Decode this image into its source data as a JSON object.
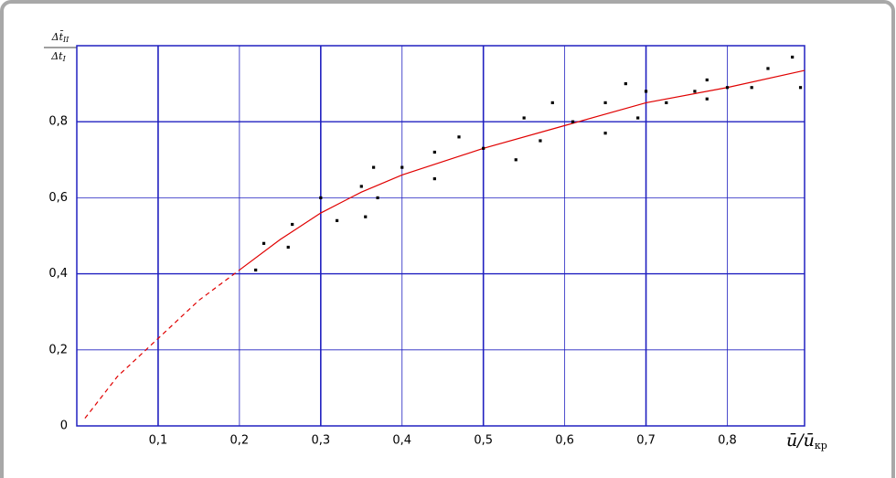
{
  "chart_data": {
    "type": "scatter",
    "ylabel": {
      "numerator": [
        "Δt̄",
        "II"
      ],
      "denominator": [
        "Δt",
        "I"
      ]
    },
    "xlabel": [
      "ū/ū",
      "кр"
    ],
    "xlim": [
      0,
      0.895
    ],
    "ylim": [
      0,
      1
    ],
    "xticks": [
      {
        "value": 0.1,
        "label": "0,1"
      },
      {
        "value": 0.2,
        "label": "0,2"
      },
      {
        "value": 0.3,
        "label": "0,3"
      },
      {
        "value": 0.4,
        "label": "0,4"
      },
      {
        "value": 0.5,
        "label": "0,5"
      },
      {
        "value": 0.6,
        "label": "0,6"
      },
      {
        "value": 0.7,
        "label": "0,7"
      },
      {
        "value": 0.8,
        "label": "0,8"
      }
    ],
    "yticks": [
      0,
      {
        "value": 0.2,
        "label": "0,2"
      },
      {
        "value": 0.4,
        "label": "0,4"
      },
      {
        "value": 0.6,
        "label": "0,6"
      },
      {
        "value": 0.8,
        "label": "0,8"
      }
    ],
    "grid": true,
    "grid_color": "#2020c0",
    "points": {
      "color": "#000000",
      "x": [
        0.22,
        0.23,
        0.26,
        0.265,
        0.3,
        0.32,
        0.35,
        0.355,
        0.365,
        0.37,
        0.4,
        0.44,
        0.44,
        0.47,
        0.5,
        0.54,
        0.55,
        0.57,
        0.585,
        0.61,
        0.65,
        0.65,
        0.675,
        0.69,
        0.7,
        0.725,
        0.76,
        0.775,
        0.775,
        0.8,
        0.83,
        0.85,
        0.88,
        0.89
      ],
      "y": [
        0.41,
        0.48,
        0.47,
        0.53,
        0.6,
        0.54,
        0.63,
        0.55,
        0.68,
        0.6,
        0.68,
        0.72,
        0.65,
        0.76,
        0.73,
        0.7,
        0.81,
        0.75,
        0.85,
        0.8,
        0.85,
        0.77,
        0.9,
        0.81,
        0.88,
        0.85,
        0.88,
        0.86,
        0.91,
        0.89,
        0.89,
        0.94,
        0.97,
        0.89
      ]
    },
    "curve_extrapolated": {
      "color": "#e00000",
      "x": [
        0.01,
        0.05,
        0.1,
        0.15,
        0.2
      ],
      "y": [
        0.02,
        0.13,
        0.23,
        0.33,
        0.41
      ]
    },
    "curve_fitted": {
      "color": "#e00000",
      "x": [
        0.2,
        0.25,
        0.3,
        0.35,
        0.4,
        0.5,
        0.6,
        0.7,
        0.8,
        0.895
      ],
      "y": [
        0.41,
        0.49,
        0.56,
        0.615,
        0.66,
        0.73,
        0.79,
        0.85,
        0.89,
        0.935
      ]
    }
  }
}
